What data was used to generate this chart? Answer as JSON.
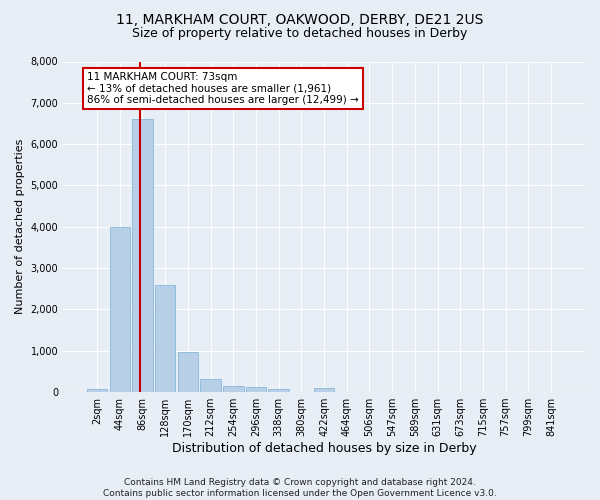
{
  "title1": "11, MARKHAM COURT, OAKWOOD, DERBY, DE21 2US",
  "title2": "Size of property relative to detached houses in Derby",
  "xlabel": "Distribution of detached houses by size in Derby",
  "ylabel": "Number of detached properties",
  "bin_labels": [
    "2sqm",
    "44sqm",
    "86sqm",
    "128sqm",
    "170sqm",
    "212sqm",
    "254sqm",
    "296sqm",
    "338sqm",
    "380sqm",
    "422sqm",
    "464sqm",
    "506sqm",
    "547sqm",
    "589sqm",
    "631sqm",
    "673sqm",
    "715sqm",
    "757sqm",
    "799sqm",
    "841sqm"
  ],
  "bar_values": [
    80,
    4000,
    6600,
    2600,
    960,
    320,
    140,
    120,
    80,
    0,
    100,
    0,
    0,
    0,
    0,
    0,
    0,
    0,
    0,
    0,
    0
  ],
  "bar_color": "#b8cfe8",
  "bar_edge_color": "#7aaed6",
  "vline_color": "#cc0000",
  "annotation_text": "11 MARKHAM COURT: 73sqm\n← 13% of detached houses are smaller (1,961)\n86% of semi-detached houses are larger (12,499) →",
  "annotation_box_color": "#ffffff",
  "annotation_box_edge": "#cc0000",
  "ylim": [
    0,
    8000
  ],
  "yticks": [
    0,
    1000,
    2000,
    3000,
    4000,
    5000,
    6000,
    7000,
    8000
  ],
  "background_color": "#e8eef5",
  "grid_color": "#ffffff",
  "footer_text": "Contains HM Land Registry data © Crown copyright and database right 2024.\nContains public sector information licensed under the Open Government Licence v3.0.",
  "title1_fontsize": 10,
  "title2_fontsize": 9,
  "xlabel_fontsize": 9,
  "ylabel_fontsize": 8,
  "tick_fontsize": 7,
  "annotation_fontsize": 7.5,
  "footer_fontsize": 6.5
}
